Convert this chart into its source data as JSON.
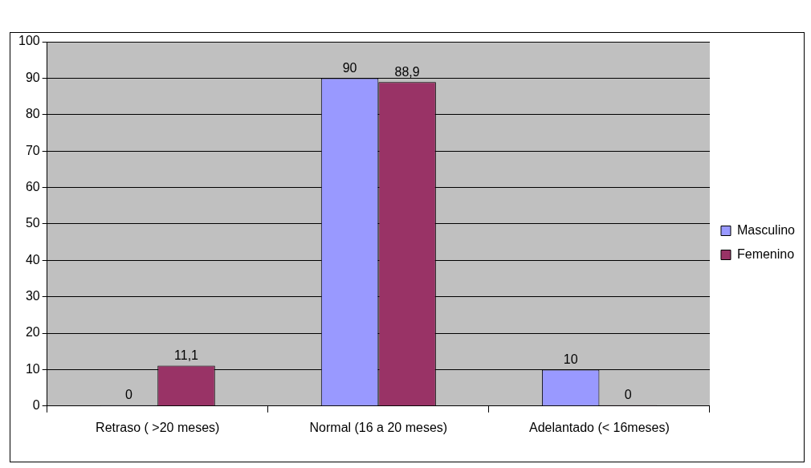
{
  "chart_data": {
    "type": "bar",
    "categories": [
      "Retraso ( >20 meses)",
      "Normal (16 a 20 meses)",
      "Adelantado (< 16meses)"
    ],
    "series": [
      {
        "name": "Masculino",
        "color": "#9999ff",
        "values": [
          0,
          90,
          10
        ],
        "value_labels": [
          "0",
          "90",
          "10"
        ]
      },
      {
        "name": "Femenino",
        "color": "#993366",
        "values": [
          11.1,
          88.9,
          0
        ],
        "value_labels": [
          "11,1",
          "88,9",
          "0"
        ]
      }
    ],
    "ylim": [
      0,
      100
    ],
    "yticks": [
      0,
      10,
      20,
      30,
      40,
      50,
      60,
      70,
      80,
      90,
      100
    ],
    "grid": "y",
    "legend": "right"
  }
}
